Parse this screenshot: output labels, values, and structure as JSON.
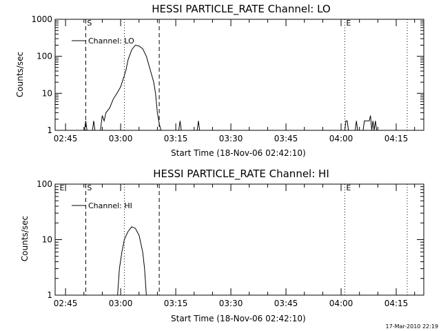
{
  "chart_data": [
    {
      "type": "line",
      "title": "HESSI PARTICLE_RATE Channel: LO",
      "xlabel": "Start Time (18-Nov-06 02:42:10)",
      "ylabel": "Counts/sec",
      "y_scale": "log",
      "ylim": [
        1,
        1000
      ],
      "y_ticks": [
        "1",
        "10",
        "100",
        "1000"
      ],
      "xlim": [
        "02:42:10",
        "04:22:30"
      ],
      "x_ticks": [
        "02:45",
        "03:00",
        "03:15",
        "03:30",
        "03:45",
        "04:00",
        "04:15"
      ],
      "grid": false,
      "legend": {
        "label": "Channel: LO",
        "position": "top-left"
      },
      "markers": [
        {
          "label": "S",
          "time": "02:50:30",
          "style": "dashed"
        },
        {
          "label": "",
          "time": "03:01:00",
          "style": "dotted"
        },
        {
          "label": "",
          "time": "03:10:30",
          "style": "dashed"
        },
        {
          "label": "E",
          "time": "04:01:00",
          "style": "dotted"
        },
        {
          "label": "",
          "time": "04:18:00",
          "style": "dotted"
        }
      ],
      "segments": [
        [
          [
            "02:50:10",
            1
          ],
          [
            "02:50:30",
            1.8
          ],
          [
            "02:50:50",
            1
          ]
        ],
        [
          [
            "02:52:20",
            1
          ],
          [
            "02:52:40",
            1.8
          ],
          [
            "02:53:00",
            1
          ]
        ],
        [
          [
            "02:54:30",
            1
          ],
          [
            "02:55:00",
            2.5
          ],
          [
            "02:55:30",
            1.8
          ],
          [
            "02:56:00",
            3
          ],
          [
            "02:57:00",
            4
          ],
          [
            "02:58:00",
            7
          ],
          [
            "02:59:00",
            10
          ],
          [
            "03:00:00",
            15
          ],
          [
            "03:01:00",
            30
          ],
          [
            "03:01:30",
            45
          ],
          [
            "03:02:00",
            80
          ],
          [
            "03:03:00",
            150
          ],
          [
            "03:04:00",
            200
          ],
          [
            "03:05:00",
            190
          ],
          [
            "03:06:00",
            160
          ],
          [
            "03:07:00",
            100
          ],
          [
            "03:08:00",
            45
          ],
          [
            "03:09:00",
            20
          ],
          [
            "03:09:30",
            10
          ],
          [
            "03:10:00",
            3
          ],
          [
            "03:10:30",
            1.5
          ],
          [
            "03:11:00",
            1
          ]
        ],
        [
          [
            "03:15:50",
            1
          ],
          [
            "03:16:10",
            1.8
          ],
          [
            "03:16:30",
            1
          ]
        ],
        [
          [
            "03:20:50",
            1
          ],
          [
            "03:21:10",
            1.8
          ],
          [
            "03:21:30",
            1
          ]
        ],
        [
          [
            "04:01:00",
            1
          ],
          [
            "04:01:20",
            1.8
          ],
          [
            "04:01:40",
            1.8
          ],
          [
            "04:02:00",
            1
          ]
        ],
        [
          [
            "04:03:50",
            1
          ],
          [
            "04:04:10",
            1.8
          ],
          [
            "04:04:30",
            1
          ]
        ],
        [
          [
            "04:06:00",
            1
          ],
          [
            "04:06:20",
            1.8
          ],
          [
            "04:07:00",
            1.8
          ],
          [
            "04:07:40",
            1.8
          ],
          [
            "04:08:00",
            2.5
          ],
          [
            "04:08:20",
            1
          ],
          [
            "04:08:40",
            1.8
          ],
          [
            "04:09:00",
            1
          ],
          [
            "04:09:20",
            1.8
          ],
          [
            "04:09:40",
            1
          ]
        ]
      ]
    },
    {
      "type": "line",
      "title": "HESSI PARTICLE_RATE Channel: HI",
      "xlabel": "Start Time (18-Nov-06 02:42:10)",
      "ylabel": "Counts/sec",
      "y_scale": "log",
      "ylim": [
        1,
        100
      ],
      "y_ticks": [
        "1",
        "10",
        "100"
      ],
      "xlim": [
        "02:42:10",
        "04:22:30"
      ],
      "x_ticks": [
        "02:45",
        "03:00",
        "03:15",
        "03:30",
        "03:45",
        "04:00",
        "04:15"
      ],
      "grid": false,
      "legend": {
        "label": "Channel: HI",
        "position": "top-left"
      },
      "markers": [
        {
          "label": "E",
          "time": "02:43:00",
          "style": "none"
        },
        {
          "label": "S",
          "time": "02:50:30",
          "style": "dashed"
        },
        {
          "label": "",
          "time": "03:01:00",
          "style": "dotted"
        },
        {
          "label": "",
          "time": "03:10:30",
          "style": "dashed"
        },
        {
          "label": "E",
          "time": "04:01:00",
          "style": "dotted"
        },
        {
          "label": "",
          "time": "04:18:00",
          "style": "dotted"
        }
      ],
      "segments": [
        [
          [
            "02:59:10",
            1
          ],
          [
            "02:59:40",
            3
          ],
          [
            "03:00:20",
            6
          ],
          [
            "03:01:00",
            10
          ],
          [
            "03:02:00",
            14
          ],
          [
            "03:03:00",
            17
          ],
          [
            "03:04:00",
            16
          ],
          [
            "03:05:00",
            12
          ],
          [
            "03:06:00",
            6
          ],
          [
            "03:06:30",
            3
          ],
          [
            "03:07:00",
            1
          ]
        ]
      ]
    }
  ],
  "footer": {
    "timestamp": "17-Mar-2010 22:19"
  }
}
